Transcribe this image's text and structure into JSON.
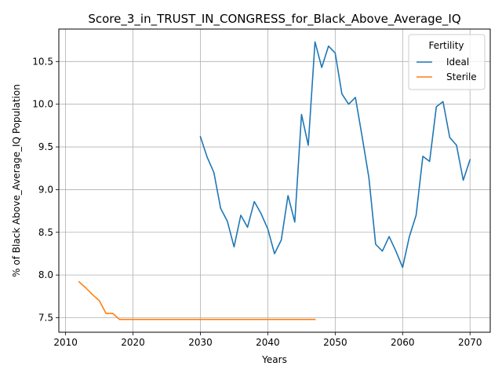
{
  "chart_data": {
    "type": "line",
    "title": "Score_3_in_TRUST_IN_CONGRESS_for_Black_Above_Average_IQ",
    "xlabel": "Years",
    "ylabel": "% of Black Above_Average_IQ Population",
    "xlim": [
      2009,
      2073
    ],
    "ylim": [
      7.33,
      10.88
    ],
    "xticks": [
      2010,
      2020,
      2030,
      2040,
      2050,
      2060,
      2070
    ],
    "yticks": [
      7.5,
      8.0,
      8.5,
      9.0,
      9.5,
      10.0,
      10.5
    ],
    "xtick_labels": [
      "2010",
      "2020",
      "2030",
      "2040",
      "2050",
      "2060",
      "2070"
    ],
    "ytick_labels": [
      "7.5",
      "8.0",
      "8.5",
      "9.0",
      "9.5",
      "10.0",
      "10.5"
    ],
    "grid": true,
    "legend": {
      "title": "Fertility",
      "placement": "top-right"
    },
    "series": [
      {
        "name": "Ideal",
        "color": "#1f77b4",
        "x": [
          2030,
          2031,
          2032,
          2033,
          2034,
          2035,
          2036,
          2037,
          2038,
          2039,
          2040,
          2041,
          2042,
          2043,
          2044,
          2045,
          2046,
          2047,
          2048,
          2049,
          2050,
          2051,
          2052,
          2053,
          2054,
          2055,
          2056,
          2057,
          2058,
          2059,
          2060,
          2061,
          2062,
          2063,
          2064,
          2065,
          2066,
          2067,
          2068,
          2069,
          2070
        ],
        "y": [
          9.62,
          9.38,
          9.2,
          8.78,
          8.63,
          8.33,
          8.7,
          8.56,
          8.86,
          8.72,
          8.54,
          8.25,
          8.41,
          8.93,
          8.62,
          9.88,
          9.52,
          10.73,
          10.43,
          10.68,
          10.6,
          10.12,
          10.0,
          10.08,
          9.62,
          9.14,
          8.36,
          8.28,
          8.45,
          8.28,
          8.09,
          8.45,
          8.7,
          9.39,
          9.33,
          9.97,
          10.03,
          9.61,
          9.52,
          9.11,
          9.35
        ]
      },
      {
        "name": "Sterile",
        "color": "#ff7f0e",
        "x": [
          2012,
          2013,
          2014,
          2015,
          2016,
          2017,
          2018,
          2019,
          2020,
          2021,
          2022,
          2023,
          2024,
          2025,
          2026,
          2027,
          2028,
          2029,
          2030,
          2031,
          2032,
          2033,
          2034,
          2035,
          2036,
          2037,
          2038,
          2039,
          2040,
          2041,
          2042,
          2043,
          2044,
          2045,
          2046,
          2047
        ],
        "y": [
          7.92,
          7.85,
          7.77,
          7.7,
          7.55,
          7.55,
          7.48,
          7.48,
          7.48,
          7.48,
          7.48,
          7.48,
          7.48,
          7.48,
          7.48,
          7.48,
          7.48,
          7.48,
          7.48,
          7.48,
          7.48,
          7.48,
          7.48,
          7.48,
          7.48,
          7.48,
          7.48,
          7.48,
          7.48,
          7.48,
          7.48,
          7.48,
          7.48,
          7.48,
          7.48,
          7.48
        ]
      }
    ]
  }
}
